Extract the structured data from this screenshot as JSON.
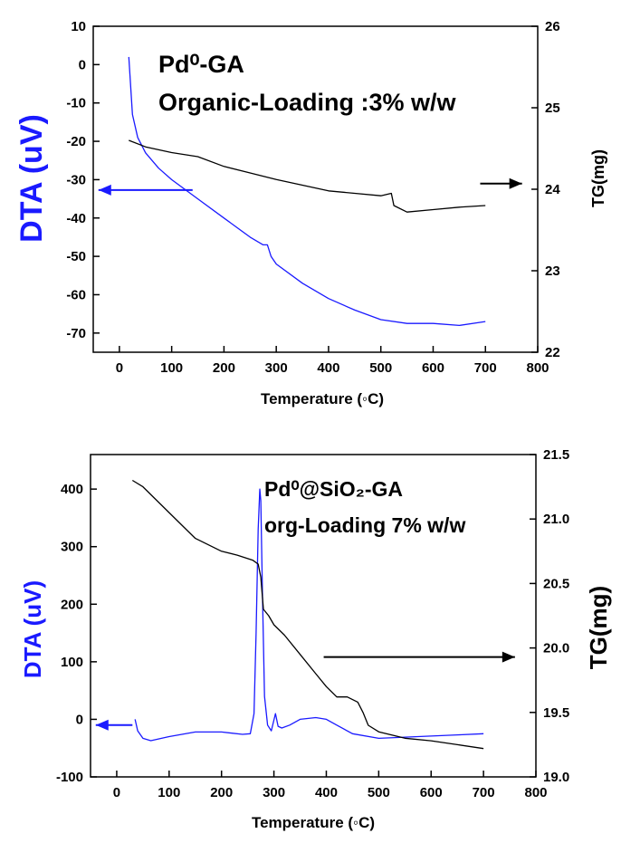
{
  "chart_data": [
    {
      "type": "line",
      "annotation_lines": [
        "Pd⁰-GA",
        "Organic-Loading :3% w/w"
      ],
      "xlabel": "Temperature (◦C)",
      "ylabel": "DTA (uV)",
      "y2label": "TG(mg)",
      "xlim": [
        -50,
        800
      ],
      "ylim": [
        -75,
        10
      ],
      "y2lim": [
        22,
        26
      ],
      "xticks": [
        0,
        100,
        200,
        300,
        400,
        500,
        600,
        700,
        800
      ],
      "yticks": [
        10,
        0,
        -10,
        -20,
        -30,
        -40,
        -50,
        -60,
        -70
      ],
      "y2ticks": [
        22,
        23,
        24,
        25,
        26
      ],
      "series": [
        {
          "axis": "left",
          "color": "#1a1aff",
          "x": [
            18,
            25,
            35,
            50,
            75,
            100,
            150,
            200,
            250,
            275,
            283,
            290,
            300,
            350,
            400,
            450,
            500,
            550,
            600,
            650,
            700
          ],
          "y": [
            2,
            -13,
            -19,
            -23,
            -27,
            -30,
            -35,
            -40,
            -45,
            -47,
            -47,
            -50,
            -52,
            -57,
            -61,
            -64,
            -66.5,
            -67.5,
            -67.5,
            -68,
            -67
          ]
        },
        {
          "axis": "right",
          "color": "#000000",
          "x": [
            18,
            50,
            100,
            150,
            200,
            250,
            300,
            350,
            400,
            450,
            500,
            520,
            525,
            550,
            600,
            650,
            700
          ],
          "y": [
            24.6,
            24.52,
            24.45,
            24.4,
            24.28,
            24.2,
            24.12,
            24.05,
            23.98,
            23.95,
            23.92,
            23.95,
            23.8,
            23.72,
            23.75,
            23.78,
            23.8
          ]
        }
      ],
      "arrows": [
        {
          "axis": "left",
          "from": [
            140,
            -32.7
          ],
          "to": [
            -40,
            -32.7
          ],
          "color": "#1a1aff"
        },
        {
          "axis": "right",
          "from": [
            690,
            24.07
          ],
          "to": [
            770,
            24.07
          ],
          "color": "#000000"
        }
      ]
    },
    {
      "type": "line",
      "annotation_lines": [
        "Pd⁰@SiO₂-GA",
        "org-Loading 7% w/w"
      ],
      "xlabel": "Temperature (◦C)",
      "ylabel": "DTA (uV)",
      "y2label": "TG(mg)",
      "xlim": [
        -50,
        800
      ],
      "ylim": [
        -100,
        460
      ],
      "y2lim": [
        19.0,
        21.5
      ],
      "xticks": [
        0,
        100,
        200,
        300,
        400,
        500,
        600,
        700,
        800
      ],
      "yticks": [
        400,
        300,
        200,
        100,
        0,
        -100
      ],
      "y2ticks": [
        19.0,
        19.5,
        20.0,
        20.5,
        21.0,
        21.5
      ],
      "series": [
        {
          "axis": "left",
          "color": "#1a1aff",
          "x": [
            35,
            40,
            50,
            65,
            100,
            150,
            200,
            240,
            255,
            262,
            266,
            270,
            273,
            275,
            278,
            282,
            288,
            295,
            303,
            308,
            315,
            330,
            350,
            380,
            400,
            420,
            450,
            500,
            550,
            600,
            650,
            700
          ],
          "y": [
            0,
            -20,
            -33,
            -37,
            -30,
            -22,
            -22,
            -26,
            -25,
            10,
            150,
            330,
            400,
            380,
            220,
            40,
            -10,
            -20,
            10,
            -12,
            -15,
            -10,
            0,
            3,
            0,
            -10,
            -25,
            -33,
            -31,
            -29,
            -27,
            -25
          ]
        },
        {
          "axis": "right",
          "color": "#000000",
          "x": [
            30,
            50,
            100,
            150,
            200,
            230,
            260,
            270,
            275,
            280,
            290,
            300,
            320,
            350,
            380,
            400,
            420,
            440,
            460,
            470,
            480,
            500,
            550,
            600,
            650,
            700
          ],
          "y": [
            21.3,
            21.25,
            21.05,
            20.85,
            20.75,
            20.72,
            20.68,
            20.65,
            20.55,
            20.3,
            20.25,
            20.18,
            20.1,
            19.95,
            19.8,
            19.7,
            19.62,
            19.62,
            19.58,
            19.5,
            19.4,
            19.35,
            19.3,
            19.28,
            19.25,
            19.22
          ]
        }
      ],
      "arrows": [
        {
          "axis": "left",
          "from": [
            30,
            -10
          ],
          "to": [
            -40,
            -10
          ],
          "color": "#1a1aff"
        },
        {
          "axis": "right",
          "from": [
            395,
            19.93
          ],
          "to": [
            760,
            19.93
          ],
          "color": "#000000"
        }
      ]
    }
  ]
}
